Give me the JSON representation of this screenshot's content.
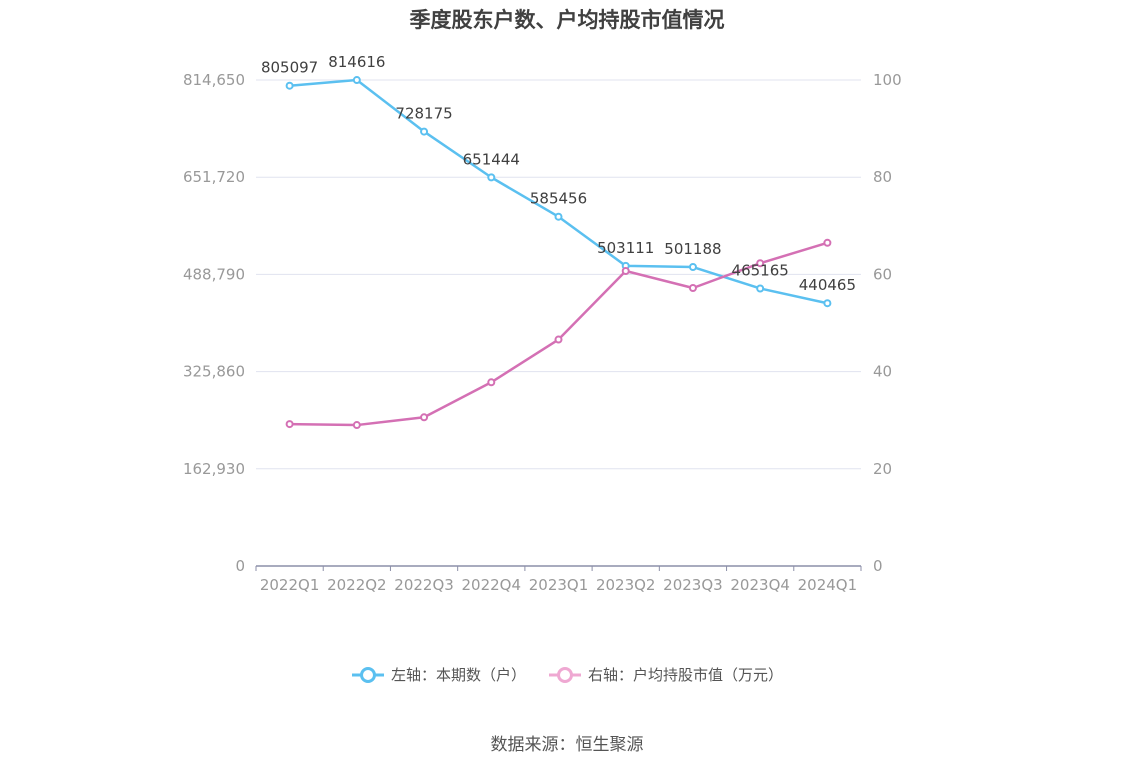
{
  "title": "季度股东户数、户均持股市值情况",
  "source": "数据来源：恒生聚源",
  "chart_data": {
    "type": "line",
    "categories": [
      "2022Q1",
      "2022Q2",
      "2022Q3",
      "2022Q4",
      "2023Q1",
      "2023Q2",
      "2023Q3",
      "2023Q4",
      "2024Q1"
    ],
    "left_axis": {
      "ticks": [
        "0",
        "162,930",
        "325,860",
        "488,790",
        "651,720",
        "814,650"
      ],
      "ylim": [
        0,
        814650
      ]
    },
    "right_axis": {
      "ticks": [
        "0",
        "20",
        "40",
        "60",
        "80",
        "100"
      ],
      "ylim": [
        0,
        100
      ]
    },
    "grid": true,
    "legend_position": "bottom",
    "series": [
      {
        "name": "左轴：本期数（户）",
        "axis": "left",
        "color": "#5bc0f0",
        "values": [
          805097,
          814616,
          728175,
          651444,
          585456,
          503111,
          501188,
          465165,
          440465
        ],
        "labels": [
          "805097",
          "814616",
          "728175",
          "651444",
          "585456",
          "503111",
          "501188",
          "465165",
          "440465"
        ]
      },
      {
        "name": "右轴：户均持股市值（万元）",
        "axis": "right",
        "color": "#d470b4",
        "values": [
          29.2,
          29.0,
          30.6,
          37.8,
          46.6,
          60.7,
          57.2,
          62.3,
          66.5
        ]
      }
    ]
  }
}
